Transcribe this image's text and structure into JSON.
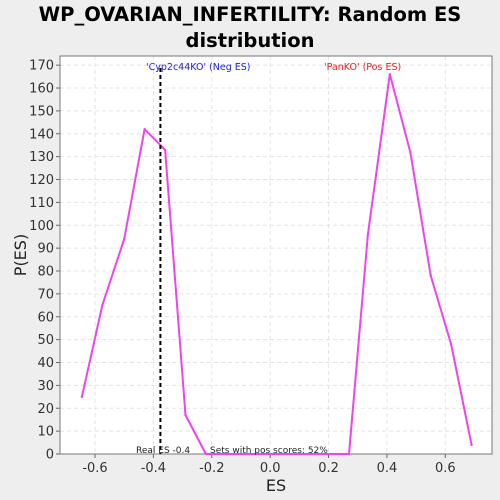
{
  "chart_data": {
    "type": "line",
    "title_lines": [
      "WP_OVARIAN_INFERTILITY: Random ES",
      "distribution"
    ],
    "xlabel": "ES",
    "ylabel": "P(ES)",
    "xlim": [
      -0.72,
      0.76
    ],
    "ylim": [
      0,
      174
    ],
    "xticks": [
      -0.6,
      -0.4,
      -0.2,
      0.0,
      0.2,
      0.4,
      0.6
    ],
    "xtick_labels": [
      "-0.6",
      "-0.4",
      "-0.2",
      "0.0",
      "0.2",
      "0.4",
      "0.6"
    ],
    "yticks": [
      0,
      10,
      20,
      30,
      40,
      50,
      60,
      70,
      80,
      90,
      100,
      110,
      120,
      130,
      140,
      150,
      160,
      170
    ],
    "ytick_labels": [
      "0",
      "10",
      "20",
      "30",
      "40",
      "50",
      "60",
      "70",
      "80",
      "90",
      "100",
      "110",
      "120",
      "130",
      "140",
      "150",
      "160",
      "170"
    ],
    "grid": true,
    "series": [
      {
        "color": "#ee44ee",
        "x": [
          -0.645,
          -0.575,
          -0.5,
          -0.43,
          -0.36,
          -0.29,
          -0.22,
          -0.15,
          0.27,
          0.335,
          0.41,
          0.48,
          0.55,
          0.62,
          0.69
        ],
        "y": [
          25,
          65,
          94,
          142,
          133,
          17,
          0,
          0,
          0,
          96,
          166,
          132,
          78,
          48,
          4
        ]
      }
    ],
    "real_es_line": {
      "x": -0.376,
      "color": "#000000"
    },
    "annotations": {
      "neg_label": "'Cyp2c44KO' (Neg ES)",
      "neg_color": "#2222cc",
      "pos_label": "'PanKO' (Pos ES)",
      "pos_color": "#dd2222",
      "real_es_text": "Real ES -0.4",
      "pos_scores_text": "Sets with pos scores: 52%"
    },
    "colors": {
      "plot_bg": "#ffffff",
      "page_bg": "#eeeeee",
      "grid": "#e4e4e4"
    }
  }
}
